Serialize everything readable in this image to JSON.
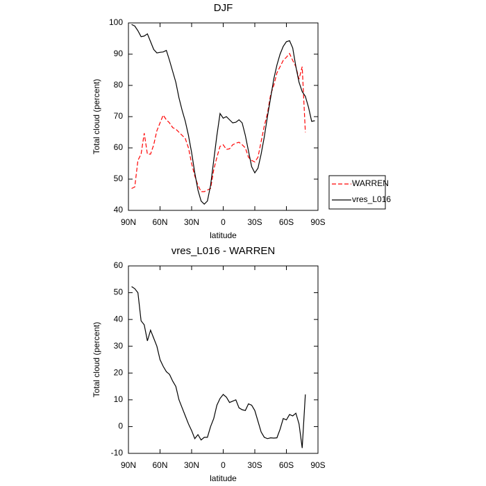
{
  "chart_data": [
    {
      "type": "line",
      "title": "DJF",
      "xlabel": "latitude",
      "ylabel": "Total cloud (percent)",
      "x": [
        87,
        84,
        81,
        78,
        75,
        72,
        69,
        66,
        63,
        60,
        57,
        54,
        51,
        48,
        45,
        42,
        39,
        36,
        33,
        30,
        27,
        24,
        21,
        18,
        15,
        12,
        9,
        6,
        3,
        0,
        -3,
        -6,
        -9,
        -12,
        -15,
        -18,
        -21,
        -24,
        -27,
        -30,
        -33,
        -36,
        -39,
        -42,
        -45,
        -48,
        -51,
        -54,
        -57,
        -60,
        -63,
        -66,
        -69,
        -72,
        -75,
        -78,
        -81,
        -84,
        -87
      ],
      "series": [
        {
          "name": "WARREN",
          "color": "#ff0000",
          "linestyle": "dashed",
          "values": [
            47,
            47.5,
            56,
            58,
            64.7,
            58,
            58,
            61,
            65.5,
            68,
            70.5,
            69,
            68,
            66.5,
            66,
            65,
            64,
            63,
            60,
            55,
            51,
            48,
            46,
            46,
            46.5,
            47,
            53,
            57,
            60.5,
            61,
            59.5,
            59.7,
            61,
            61.5,
            61.8,
            61,
            60,
            57,
            56,
            55.5,
            57,
            62,
            67,
            71,
            77,
            80,
            84,
            86,
            88,
            89,
            90.2,
            88,
            86,
            82,
            86,
            65,
            null,
            null,
            null
          ]
        },
        {
          "name": "vres_L016",
          "color": "#000000",
          "linestyle": "solid",
          "values": [
            99.5,
            99,
            97.5,
            95.6,
            95.8,
            96.5,
            94,
            91.5,
            90.4,
            90.6,
            90.7,
            91.2,
            88,
            84.5,
            81,
            76,
            72,
            68.5,
            64,
            58.5,
            52,
            46.5,
            43,
            42,
            43,
            48,
            56,
            64,
            71,
            69.5,
            70,
            69,
            68,
            68.2,
            69,
            68,
            64,
            59,
            54,
            52,
            53.5,
            58,
            63.5,
            70,
            76,
            82,
            86.5,
            90,
            92.5,
            94,
            94.3,
            92,
            86,
            81,
            78,
            76.5,
            73,
            68.5,
            68.7
          ]
        }
      ],
      "xlim": [
        90,
        -90
      ],
      "ylim": [
        40,
        100
      ],
      "xticks": [
        {
          "value": 90,
          "label": "90N"
        },
        {
          "value": 60,
          "label": "60N"
        },
        {
          "value": 30,
          "label": "30N"
        },
        0,
        {
          "value": -30,
          "label": "30S"
        },
        {
          "value": -60,
          "label": "60S"
        },
        {
          "value": -90,
          "label": "90S"
        }
      ],
      "yticks": [
        40,
        50,
        60,
        70,
        80,
        90,
        100
      ],
      "legend": "right"
    },
    {
      "type": "line",
      "title": "vres_L016 - WARREN",
      "xlabel": "latitude",
      "ylabel": "Total cloud (percent)",
      "x": [
        87,
        84,
        81,
        78,
        75,
        72,
        69,
        66,
        63,
        60,
        57,
        54,
        51,
        48,
        45,
        42,
        39,
        36,
        33,
        30,
        27,
        24,
        21,
        18,
        15,
        12,
        9,
        6,
        3,
        0,
        -3,
        -6,
        -9,
        -12,
        -15,
        -18,
        -21,
        -24,
        -27,
        -30,
        -33,
        -36,
        -39,
        -42,
        -45,
        -48,
        -51,
        -54,
        -57,
        -60,
        -63,
        -66,
        -69,
        -72,
        -75,
        -78
      ],
      "series": [
        {
          "color": "#000000",
          "linestyle": "solid",
          "values": [
            52.3,
            51.5,
            50,
            39.5,
            38,
            32,
            36,
            33,
            30,
            25,
            22.5,
            20.5,
            19.5,
            17,
            15,
            10,
            7,
            4,
            1,
            -1.5,
            -4.5,
            -3,
            -5,
            -4,
            -4,
            0,
            3,
            8,
            10.5,
            12,
            11,
            9,
            9.5,
            10,
            7,
            6.3,
            6,
            8.5,
            8,
            6,
            2,
            -2,
            -4,
            -4.5,
            -4.2,
            -4.3,
            -4.2,
            -1,
            3,
            2.5,
            4.5,
            4,
            5,
            1,
            -8,
            12
          ]
        }
      ],
      "xlim": [
        90,
        -90
      ],
      "ylim": [
        -10,
        60
      ],
      "xticks": [
        {
          "value": 90,
          "label": "90N"
        },
        {
          "value": 60,
          "label": "60N"
        },
        {
          "value": 30,
          "label": "30N"
        },
        0,
        {
          "value": -30,
          "label": "30S"
        },
        {
          "value": -60,
          "label": "60S"
        },
        {
          "value": -90,
          "label": "90S"
        }
      ],
      "yticks": [
        -10,
        0,
        10,
        20,
        30,
        40,
        50,
        60
      ]
    }
  ]
}
